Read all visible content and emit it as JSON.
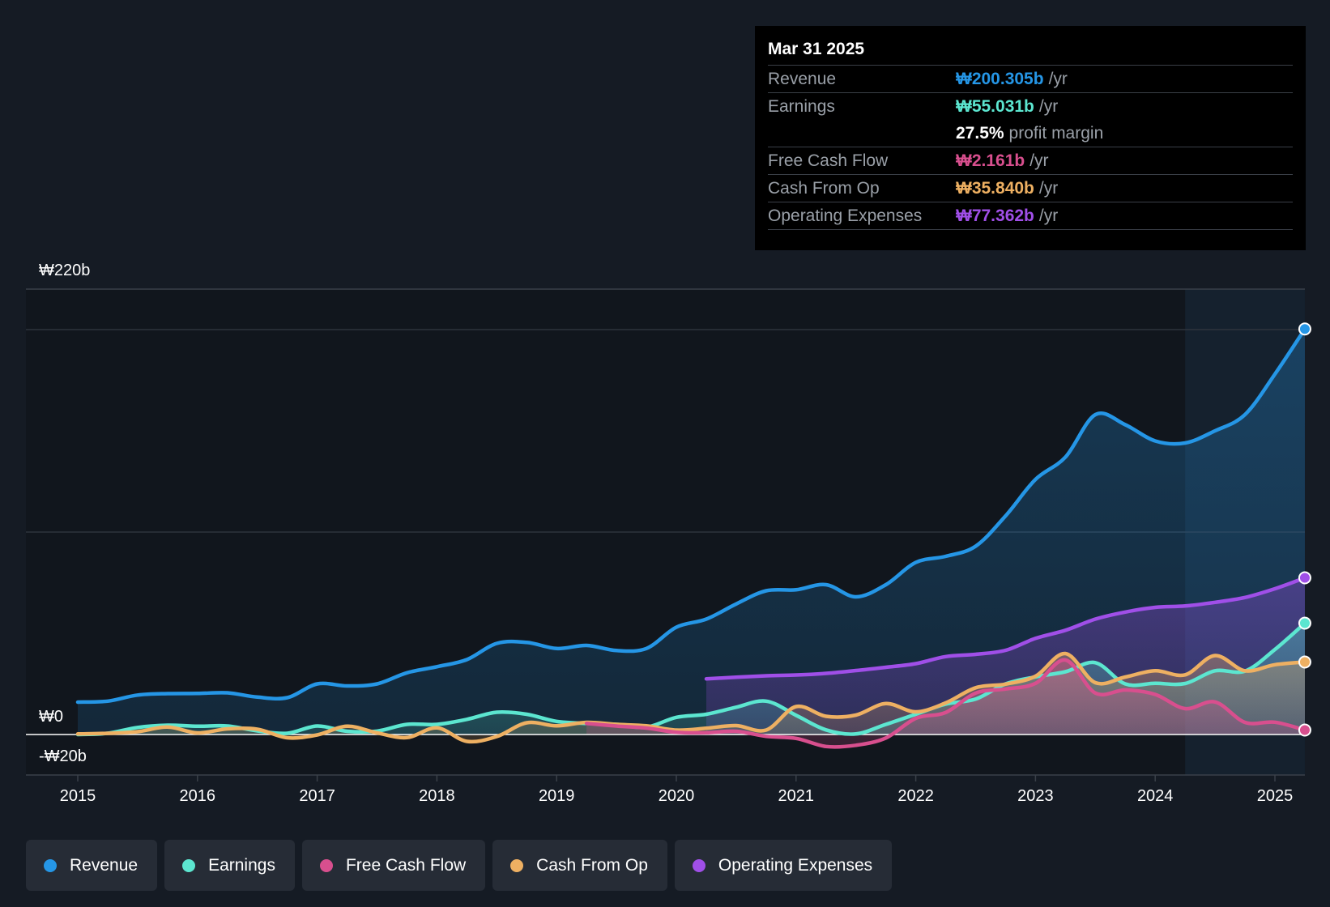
{
  "colors": {
    "revenue": "#2596e6",
    "earnings": "#5ce6d0",
    "fcf": "#d84f8e",
    "cfo": "#eeb062",
    "opex": "#a04fe8",
    "background": "#151b24",
    "grid": "#2e343d"
  },
  "tooltip": {
    "date": "Mar 31 2025",
    "rows": [
      {
        "name": "Revenue",
        "value": "₩200.305b",
        "unit": "/yr"
      },
      {
        "name": "Earnings",
        "value": "₩55.031b",
        "unit": "/yr"
      },
      {
        "name": "",
        "value": "27.5%",
        "unit": "profit margin"
      },
      {
        "name": "Free Cash Flow",
        "value": "₩2.161b",
        "unit": "/yr"
      },
      {
        "name": "Cash From Op",
        "value": "₩35.840b",
        "unit": "/yr"
      },
      {
        "name": "Operating Expenses",
        "value": "₩77.362b",
        "unit": "/yr"
      }
    ]
  },
  "legend": [
    {
      "label": "Revenue",
      "color": "#2596e6"
    },
    {
      "label": "Earnings",
      "color": "#5ce6d0"
    },
    {
      "label": "Free Cash Flow",
      "color": "#d84f8e"
    },
    {
      "label": "Cash From Op",
      "color": "#eeb062"
    },
    {
      "label": "Operating Expenses",
      "color": "#a04fe8"
    }
  ],
  "chart_data": {
    "type": "area",
    "title": "",
    "xlabel": "",
    "ylabel": "",
    "ylim": [
      -20,
      220
    ],
    "xlim": [
      2014.6,
      2025.25
    ],
    "y_labels": {
      "top": "₩220b",
      "zero": "₩0",
      "bottom": "-₩20b"
    },
    "x_ticks": [
      {
        "value": 2015,
        "label": "2015"
      },
      {
        "value": 2016,
        "label": "2016"
      },
      {
        "value": 2017,
        "label": "2017"
      },
      {
        "value": 2018,
        "label": "2018"
      },
      {
        "value": 2019,
        "label": "2019"
      },
      {
        "value": 2020,
        "label": "2020"
      },
      {
        "value": 2021,
        "label": "2021"
      },
      {
        "value": 2022,
        "label": "2022"
      },
      {
        "value": 2023,
        "label": "2023"
      },
      {
        "value": 2024,
        "label": "2024"
      },
      {
        "value": 2025,
        "label": "2025"
      }
    ],
    "gridlines": [
      200,
      100
    ],
    "highlight_start": 2024.25,
    "series": [
      {
        "name": "Revenue",
        "key": "revenue",
        "color": "#2596e6",
        "points": [
          [
            2015,
            16
          ],
          [
            2015.25,
            16.5
          ],
          [
            2015.5,
            19.5
          ],
          [
            2015.75,
            20.2
          ],
          [
            2016,
            20.3
          ],
          [
            2016.25,
            20.6
          ],
          [
            2016.5,
            18.5
          ],
          [
            2016.75,
            18.2
          ],
          [
            2017,
            25
          ],
          [
            2017.25,
            24
          ],
          [
            2017.5,
            25
          ],
          [
            2017.75,
            30.5
          ],
          [
            2018,
            33.5
          ],
          [
            2018.25,
            37
          ],
          [
            2018.5,
            45
          ],
          [
            2018.75,
            45.5
          ],
          [
            2019,
            42.5
          ],
          [
            2019.25,
            44
          ],
          [
            2019.5,
            41.5
          ],
          [
            2019.75,
            42.5
          ],
          [
            2020,
            53
          ],
          [
            2020.25,
            57
          ],
          [
            2020.5,
            64.5
          ],
          [
            2020.75,
            71
          ],
          [
            2021,
            71.5
          ],
          [
            2021.25,
            74
          ],
          [
            2021.5,
            68
          ],
          [
            2021.75,
            74
          ],
          [
            2022,
            85
          ],
          [
            2022.25,
            88
          ],
          [
            2022.5,
            93
          ],
          [
            2022.75,
            108
          ],
          [
            2023,
            126
          ],
          [
            2023.25,
            137
          ],
          [
            2023.5,
            158
          ],
          [
            2023.75,
            153
          ],
          [
            2024,
            145
          ],
          [
            2024.25,
            144
          ],
          [
            2024.5,
            150
          ],
          [
            2024.75,
            158
          ],
          [
            2025,
            178
          ],
          [
            2025.25,
            200.3
          ]
        ]
      },
      {
        "name": "Operating Expenses",
        "key": "opex",
        "color": "#a04fe8",
        "points": [
          [
            2020.25,
            27.5
          ],
          [
            2020.5,
            28.3
          ],
          [
            2020.75,
            29
          ],
          [
            2021,
            29.4
          ],
          [
            2021.25,
            30.2
          ],
          [
            2021.5,
            31.6
          ],
          [
            2021.75,
            33.2
          ],
          [
            2022,
            35
          ],
          [
            2022.25,
            38.5
          ],
          [
            2022.5,
            39.6
          ],
          [
            2022.75,
            41.6
          ],
          [
            2023,
            47.5
          ],
          [
            2023.25,
            51.5
          ],
          [
            2023.5,
            57
          ],
          [
            2023.75,
            60.5
          ],
          [
            2024,
            62.8
          ],
          [
            2024.25,
            63.5
          ],
          [
            2024.5,
            65.3
          ],
          [
            2024.75,
            67.7
          ],
          [
            2025,
            72
          ],
          [
            2025.25,
            77.4
          ]
        ]
      },
      {
        "name": "Earnings",
        "key": "earnings",
        "color": "#5ce6d0",
        "points": [
          [
            2015,
            0
          ],
          [
            2015.25,
            0.6
          ],
          [
            2015.5,
            3.5
          ],
          [
            2015.75,
            4.6
          ],
          [
            2016,
            4.1
          ],
          [
            2016.25,
            4.2
          ],
          [
            2016.5,
            1.8
          ],
          [
            2016.75,
            0.6
          ],
          [
            2017,
            4.2
          ],
          [
            2017.25,
            1.6
          ],
          [
            2017.5,
            1.7
          ],
          [
            2017.75,
            5
          ],
          [
            2018,
            5
          ],
          [
            2018.25,
            7.5
          ],
          [
            2018.5,
            11
          ],
          [
            2018.75,
            10
          ],
          [
            2019,
            6.5
          ],
          [
            2019.25,
            5.5
          ],
          [
            2019.5,
            5
          ],
          [
            2019.75,
            3.6
          ],
          [
            2020,
            8.5
          ],
          [
            2020.25,
            10
          ],
          [
            2020.5,
            13.5
          ],
          [
            2020.75,
            16.5
          ],
          [
            2021,
            9.5
          ],
          [
            2021.25,
            2.3
          ],
          [
            2021.5,
            0.3
          ],
          [
            2021.75,
            5
          ],
          [
            2022,
            10
          ],
          [
            2022.25,
            15
          ],
          [
            2022.5,
            17.5
          ],
          [
            2022.75,
            25
          ],
          [
            2023,
            28.5
          ],
          [
            2023.25,
            31
          ],
          [
            2023.5,
            35.5
          ],
          [
            2023.75,
            25
          ],
          [
            2024,
            25.3
          ],
          [
            2024.25,
            25.2
          ],
          [
            2024.5,
            31.5
          ],
          [
            2024.75,
            31.3
          ],
          [
            2025,
            42
          ],
          [
            2025.25,
            55
          ]
        ]
      },
      {
        "name": "Cash From Op",
        "key": "cfo",
        "color": "#eeb062",
        "points": [
          [
            2015,
            0.3
          ],
          [
            2015.25,
            0.6
          ],
          [
            2015.5,
            1.4
          ],
          [
            2015.75,
            3.7
          ],
          [
            2016,
            0.8
          ],
          [
            2016.25,
            2.8
          ],
          [
            2016.5,
            2.6
          ],
          [
            2016.75,
            -1.6
          ],
          [
            2017,
            -0.2
          ],
          [
            2017.25,
            4.1
          ],
          [
            2017.5,
            0.8
          ],
          [
            2017.75,
            -1.5
          ],
          [
            2018,
            3.3
          ],
          [
            2018.25,
            -3.4
          ],
          [
            2018.5,
            -1
          ],
          [
            2018.75,
            5.8
          ],
          [
            2019,
            4.3
          ],
          [
            2019.25,
            6
          ],
          [
            2019.5,
            5
          ],
          [
            2019.75,
            4.3
          ],
          [
            2020,
            2.2
          ],
          [
            2020.25,
            3.1
          ],
          [
            2020.5,
            4.4
          ],
          [
            2020.75,
            2.2
          ],
          [
            2021,
            13.8
          ],
          [
            2021.25,
            9
          ],
          [
            2021.5,
            9.6
          ],
          [
            2021.75,
            15.3
          ],
          [
            2022,
            11.2
          ],
          [
            2022.25,
            15.6
          ],
          [
            2022.5,
            23.1
          ],
          [
            2022.75,
            24.9
          ],
          [
            2023,
            28.8
          ],
          [
            2023.25,
            40
          ],
          [
            2023.5,
            25.6
          ],
          [
            2023.75,
            28.4
          ],
          [
            2024,
            31.5
          ],
          [
            2024.25,
            29.5
          ],
          [
            2024.5,
            39
          ],
          [
            2024.75,
            31.5
          ],
          [
            2025,
            34.5
          ],
          [
            2025.25,
            35.8
          ]
        ]
      },
      {
        "name": "Free Cash Flow",
        "key": "fcf",
        "color": "#d84f8e",
        "points": [
          [
            2019.25,
            5.5
          ],
          [
            2019.5,
            4.2
          ],
          [
            2019.75,
            3.2
          ],
          [
            2020,
            1.1
          ],
          [
            2020.25,
            0.9
          ],
          [
            2020.5,
            1.6
          ],
          [
            2020.75,
            -0.9
          ],
          [
            2021,
            -1.9
          ],
          [
            2021.25,
            -5.9
          ],
          [
            2021.5,
            -5.3
          ],
          [
            2021.75,
            -1.7
          ],
          [
            2022,
            8
          ],
          [
            2022.25,
            10.9
          ],
          [
            2022.5,
            20.5
          ],
          [
            2022.75,
            22.5
          ],
          [
            2023,
            25.3
          ],
          [
            2023.25,
            36.8
          ],
          [
            2023.5,
            20.5
          ],
          [
            2023.75,
            22
          ],
          [
            2024,
            19.8
          ],
          [
            2024.25,
            12.8
          ],
          [
            2024.5,
            16.1
          ],
          [
            2024.75,
            6
          ],
          [
            2025,
            6.1
          ],
          [
            2025.25,
            2.2
          ]
        ]
      }
    ]
  }
}
